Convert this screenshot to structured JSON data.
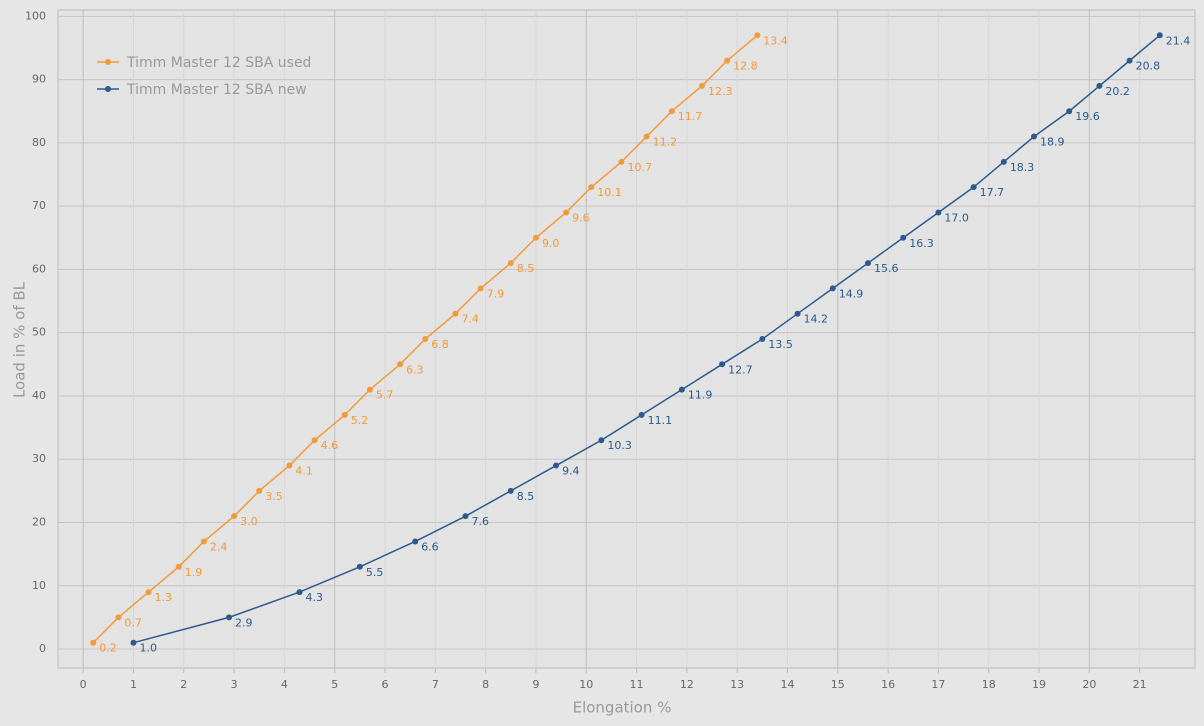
{
  "chart_data": {
    "type": "line",
    "x_label": "Elongation %",
    "y_label": "Load in % of BL",
    "xlim": [
      -0.5,
      22.1
    ],
    "ylim": [
      -3,
      101
    ],
    "xticks": [
      0,
      1,
      2,
      3,
      4,
      5,
      6,
      7,
      8,
      9,
      10,
      11,
      12,
      13,
      14,
      15,
      16,
      17,
      18,
      19,
      20,
      21
    ],
    "yticks": [
      0,
      10,
      20,
      30,
      40,
      50,
      60,
      70,
      80,
      90,
      100
    ],
    "grid": true,
    "legend": "top-left",
    "series": [
      {
        "name": "Timm Master 12 SBA used",
        "color": "#f39a3a",
        "x": [
          0.2,
          0.7,
          1.3,
          1.9,
          2.4,
          3.0,
          3.5,
          4.1,
          4.6,
          5.2,
          5.7,
          6.3,
          6.8,
          7.4,
          7.9,
          8.5,
          9.0,
          9.6,
          10.1,
          10.7,
          11.2,
          11.7,
          12.3,
          12.8,
          13.4
        ],
        "values": [
          1,
          5,
          9,
          13,
          17,
          21,
          25,
          29,
          33,
          37,
          41,
          45,
          49,
          53,
          57,
          61,
          65,
          69,
          73,
          77,
          81,
          85,
          89,
          93,
          97
        ],
        "value_labels": [
          "0.2",
          "0.7",
          "1.3",
          "1.9",
          "2.4",
          "3.0",
          "3.5",
          "4.1",
          "4.6",
          "5.2",
          "5.7",
          "6.3",
          "6.8",
          "7.4",
          "7.9",
          "8.5",
          "9.0",
          "9.6",
          "10.1",
          "10.7",
          "11.2",
          "11.7",
          "12.3",
          "12.8",
          "13.4"
        ]
      },
      {
        "name": "Timm Master 12 SBA new",
        "color": "#2d5a8e",
        "x": [
          1.0,
          2.9,
          4.3,
          5.5,
          6.6,
          7.6,
          8.5,
          9.4,
          10.3,
          11.1,
          11.9,
          12.7,
          13.5,
          14.2,
          14.9,
          15.6,
          16.3,
          17.0,
          17.7,
          18.3,
          18.9,
          19.6,
          20.2,
          20.8,
          21.4
        ],
        "values": [
          1,
          5,
          9,
          13,
          17,
          21,
          25,
          29,
          33,
          37,
          41,
          45,
          49,
          53,
          57,
          61,
          65,
          69,
          73,
          77,
          81,
          85,
          89,
          93,
          97
        ],
        "value_labels": [
          "1.0",
          "2.9",
          "4.3",
          "5.5",
          "6.6",
          "7.6",
          "8.5",
          "9.4",
          "10.3",
          "11.1",
          "11.9",
          "12.7",
          "13.5",
          "14.2",
          "14.9",
          "15.6",
          "16.3",
          "17.0",
          "17.7",
          "18.3",
          "18.9",
          "19.6",
          "20.2",
          "20.8",
          "21.4"
        ]
      }
    ]
  }
}
